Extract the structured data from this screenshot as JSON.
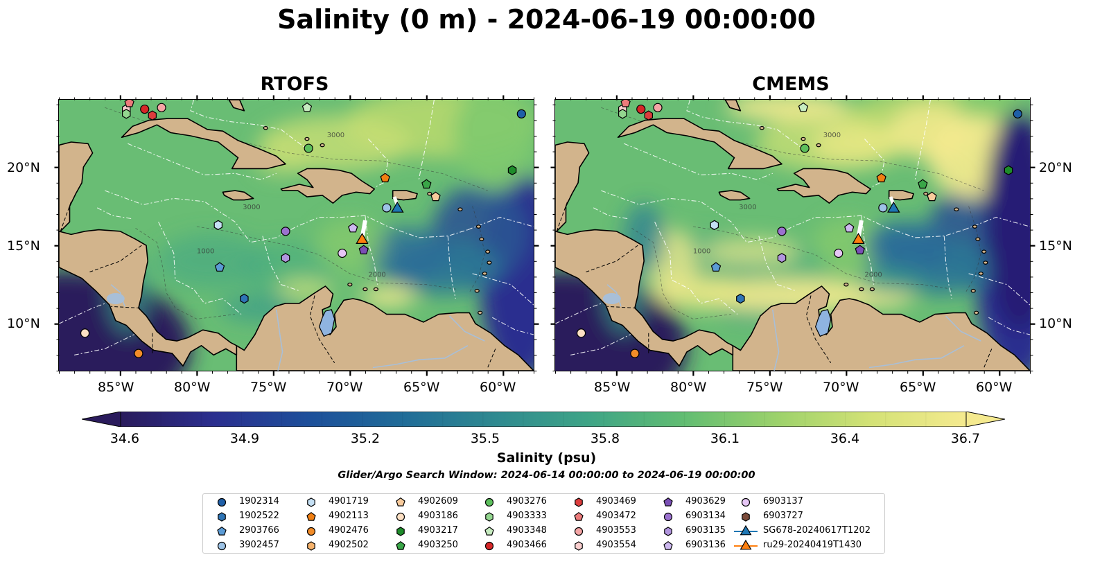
{
  "title": "Salinity (0 m) - 2024-06-19 00:00:00",
  "panels": [
    {
      "title": "RTOFS"
    },
    {
      "title": "CMEMS"
    }
  ],
  "axes": {
    "lon_labels": [
      "85°W",
      "80°W",
      "75°W",
      "70°W",
      "65°W",
      "60°W"
    ],
    "lat_labels": [
      "20°N",
      "15°N",
      "10°N"
    ],
    "lon_range": [
      -89,
      -58
    ],
    "lat_range": [
      7,
      24.3
    ]
  },
  "colorbar": {
    "label": "Salinity (psu)",
    "ticks": [
      "34.6",
      "34.9",
      "35.2",
      "35.5",
      "35.8",
      "36.1",
      "36.4",
      "36.7"
    ],
    "range": [
      34.6,
      36.7
    ],
    "extend": "both",
    "colormap": [
      "#2a1b5c",
      "#2b2f8f",
      "#1d4f9a",
      "#206c98",
      "#2f8a90",
      "#3fa586",
      "#62bd72",
      "#9dd26b",
      "#d4e276",
      "#f5ea8f"
    ]
  },
  "search_window": "Glider/Argo Search Window: 2024-06-14 00:00:00 to 2024-06-19 00:00:00",
  "land_color": "#d2b48c",
  "lake_color": "#8fb4e0",
  "legend": [
    {
      "label": "1902314",
      "marker": "circle",
      "color": "#1f5fa8"
    },
    {
      "label": "1902522",
      "marker": "hexagon",
      "color": "#2e74b5"
    },
    {
      "label": "2903766",
      "marker": "pentagon",
      "color": "#5b9bd5"
    },
    {
      "label": "3902457",
      "marker": "circle",
      "color": "#9dc3e6"
    },
    {
      "label": "4901719",
      "marker": "hexagon",
      "color": "#c5e0f4"
    },
    {
      "label": "4902113",
      "marker": "pentagon",
      "color": "#f07f12"
    },
    {
      "label": "4902476",
      "marker": "circle",
      "color": "#f28c28"
    },
    {
      "label": "4902502",
      "marker": "hexagon",
      "color": "#f6b26b"
    },
    {
      "label": "4902609",
      "marker": "pentagon",
      "color": "#f9cb9c"
    },
    {
      "label": "4903186",
      "marker": "circle",
      "color": "#fde0c4"
    },
    {
      "label": "4903217",
      "marker": "hexagon",
      "color": "#1e8c2a"
    },
    {
      "label": "4903250",
      "marker": "pentagon",
      "color": "#3aa648"
    },
    {
      "label": "4903276",
      "marker": "circle",
      "color": "#5cbf5c"
    },
    {
      "label": "4903333",
      "marker": "hexagon",
      "color": "#93d68f"
    },
    {
      "label": "4903348",
      "marker": "pentagon",
      "color": "#c7ecc0"
    },
    {
      "label": "4903466",
      "marker": "circle",
      "color": "#d62728"
    },
    {
      "label": "4903469",
      "marker": "hexagon",
      "color": "#dd3d3d"
    },
    {
      "label": "4903472",
      "marker": "pentagon",
      "color": "#ec7b7b"
    },
    {
      "label": "4903553",
      "marker": "circle",
      "color": "#f4a5a5"
    },
    {
      "label": "4903554",
      "marker": "hexagon",
      "color": "#fbcfcf"
    },
    {
      "label": "4903629",
      "marker": "pentagon",
      "color": "#7a4fb5"
    },
    {
      "label": "6903134",
      "marker": "circle",
      "color": "#9b72cf"
    },
    {
      "label": "6903135",
      "marker": "hexagon",
      "color": "#b195de"
    },
    {
      "label": "6903136",
      "marker": "pentagon",
      "color": "#cdb8ef"
    },
    {
      "label": "6903137",
      "marker": "circle",
      "color": "#e6c6f5"
    },
    {
      "label": "6903727",
      "marker": "hexagon",
      "color": "#7b4b3a"
    },
    {
      "label": "SG678-20240617T1202",
      "marker": "triangle-line",
      "color": "#1f77b4"
    },
    {
      "label": "ru29-20240419T1430",
      "marker": "triangle-line",
      "color": "#ff7f0e"
    }
  ],
  "floats": [
    {
      "id": "1902314",
      "lon": -58.8,
      "lat": 23.4
    },
    {
      "id": "4903466",
      "lon": -83.4,
      "lat": 23.7
    },
    {
      "id": "4903469",
      "lon": -82.9,
      "lat": 23.3
    },
    {
      "id": "4903553",
      "lon": -82.3,
      "lat": 23.8
    },
    {
      "id": "4903554",
      "lon": -84.6,
      "lat": 23.7
    },
    {
      "id": "4903472",
      "lon": -84.4,
      "lat": 24.1
    },
    {
      "id": "4903333",
      "lon": -84.6,
      "lat": 23.4
    },
    {
      "id": "4903348",
      "lon": -72.8,
      "lat": 23.8
    },
    {
      "id": "4903276",
      "lon": -72.7,
      "lat": 21.2
    },
    {
      "id": "4903217",
      "lon": -59.4,
      "lat": 19.8
    },
    {
      "id": "4902113",
      "lon": -67.7,
      "lat": 19.3
    },
    {
      "id": "4903250",
      "lon": -65.0,
      "lat": 18.9
    },
    {
      "id": "4902609",
      "lon": -64.4,
      "lat": 18.1
    },
    {
      "id": "3902457",
      "lon": -67.6,
      "lat": 17.4
    },
    {
      "id": "4901719",
      "lon": -78.6,
      "lat": 16.3
    },
    {
      "id": "6903134",
      "lon": -74.2,
      "lat": 15.9
    },
    {
      "id": "6903136",
      "lon": -69.8,
      "lat": 16.1
    },
    {
      "id": "6903135",
      "lon": -74.2,
      "lat": 14.2
    },
    {
      "id": "6903137",
      "lon": -70.5,
      "lat": 14.5
    },
    {
      "id": "4903629",
      "lon": -69.1,
      "lat": 14.7
    },
    {
      "id": "2903766",
      "lon": -78.5,
      "lat": 13.6
    },
    {
      "id": "1902522",
      "lon": -76.9,
      "lat": 11.6
    },
    {
      "id": "4903186",
      "lon": -87.3,
      "lat": 9.4
    },
    {
      "id": "4902476",
      "lon": -83.8,
      "lat": 8.1
    }
  ],
  "gliders": [
    {
      "id": "SG678-20240617T1202",
      "lon": -66.9,
      "lat": 17.4
    },
    {
      "id": "ru29-20240419T1430",
      "lon": -69.2,
      "lat": 15.4
    }
  ],
  "contour_labels": [
    "1000",
    "2000",
    "3000"
  ]
}
